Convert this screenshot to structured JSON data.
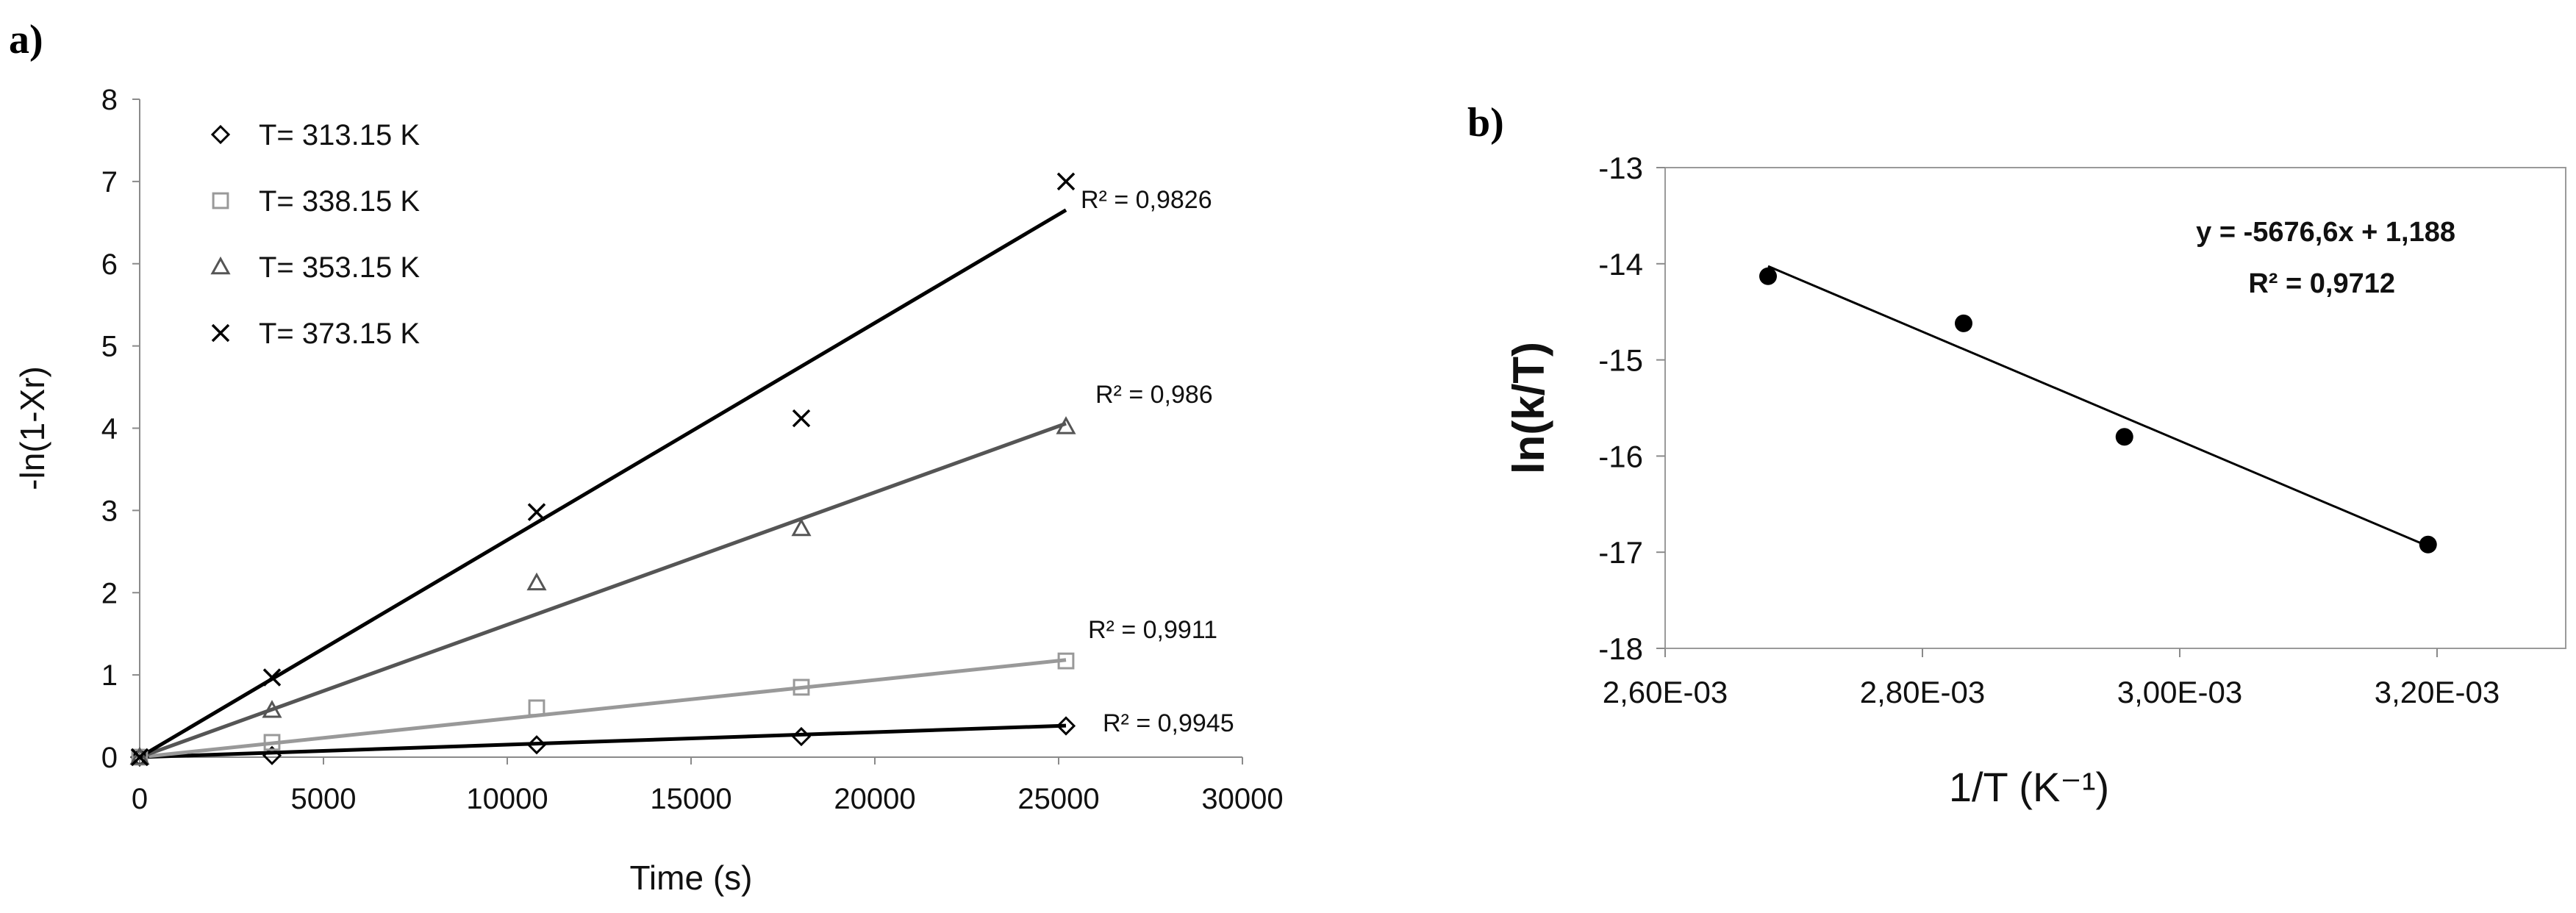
{
  "panels": {
    "a_label": "a)",
    "b_label": "b)"
  },
  "chart_data": [
    {
      "type": "scatter",
      "title": "",
      "xlabel": "Time (s)",
      "ylabel": "-ln(1-Xr)",
      "xlim": [
        0,
        30000
      ],
      "ylim": [
        0,
        8
      ],
      "xticks": [
        0,
        5000,
        10000,
        15000,
        20000,
        25000,
        30000
      ],
      "yticks": [
        0,
        1,
        2,
        3,
        4,
        5,
        6,
        7,
        8
      ],
      "xtick_labels": [
        "0",
        "5000",
        "10000",
        "15000",
        "20000",
        "25000",
        "30000"
      ],
      "ytick_labels": [
        "0",
        "1",
        "2",
        "3",
        "4",
        "5",
        "6",
        "7",
        "8"
      ],
      "grid": false,
      "legend_position": "top-left",
      "series": [
        {
          "name": "T= 313.15 K",
          "marker": "diamond",
          "color": "#000000",
          "x": [
            0,
            3600,
            10800,
            18000,
            25200
          ],
          "y": [
            0.0,
            0.02,
            0.15,
            0.25,
            0.38
          ],
          "trend_slope": 1.52e-05,
          "r2_label": "R² = 0,9945"
        },
        {
          "name": "T= 338.15 K",
          "marker": "square",
          "color": "#999999",
          "x": [
            0,
            3600,
            10800,
            18000,
            25200
          ],
          "y": [
            0.0,
            0.18,
            0.6,
            0.85,
            1.17
          ],
          "trend_slope": 4.69e-05,
          "r2_label": "R² = 0,9911"
        },
        {
          "name": "T= 353.15 K",
          "marker": "triangle",
          "color": "#555555",
          "x": [
            0,
            3600,
            10800,
            18000,
            25200
          ],
          "y": [
            0.0,
            0.57,
            2.12,
            2.78,
            4.02
          ],
          "trend_slope": 0.000161,
          "r2_label": "R² = 0,986"
        },
        {
          "name": "T= 373.15 K",
          "marker": "x",
          "color": "#000000",
          "x": [
            0,
            3600,
            10800,
            18000,
            25200
          ],
          "y": [
            0.0,
            0.97,
            2.98,
            4.12,
            7.0
          ],
          "trend_slope": 0.000264,
          "r2_label": "R² = 0,9826"
        }
      ]
    },
    {
      "type": "scatter",
      "title": "",
      "xlabel": "1/T (K⁻¹)",
      "ylabel": "ln(k/T)",
      "xlim": [
        0.0026,
        0.0033
      ],
      "ylim": [
        -18,
        -13
      ],
      "xticks": [
        0.0026,
        0.0028,
        0.003,
        0.0032
      ],
      "yticks": [
        -18,
        -17,
        -16,
        -15,
        -14,
        -13
      ],
      "xtick_labels": [
        "2,60E-03",
        "2,80E-03",
        "3,00E-03",
        "3,20E-03"
      ],
      "ytick_labels": [
        "-18",
        "-17",
        "-16",
        "-15",
        "-14",
        "-13"
      ],
      "grid": false,
      "series": [
        {
          "marker": "circle",
          "color": "#000000",
          "x": [
            0.00268,
            0.002832,
            0.002957,
            0.003193
          ],
          "y": [
            -14.13,
            -14.62,
            -15.8,
            -16.92
          ],
          "trend_slope": -5676.6,
          "trend_intercept": 1.188,
          "trend_x_range": [
            0.00268,
            0.003193
          ]
        }
      ],
      "equation_label": "y = -5676,6x + 1,188",
      "r2_label": "R² = 0,9712"
    }
  ]
}
